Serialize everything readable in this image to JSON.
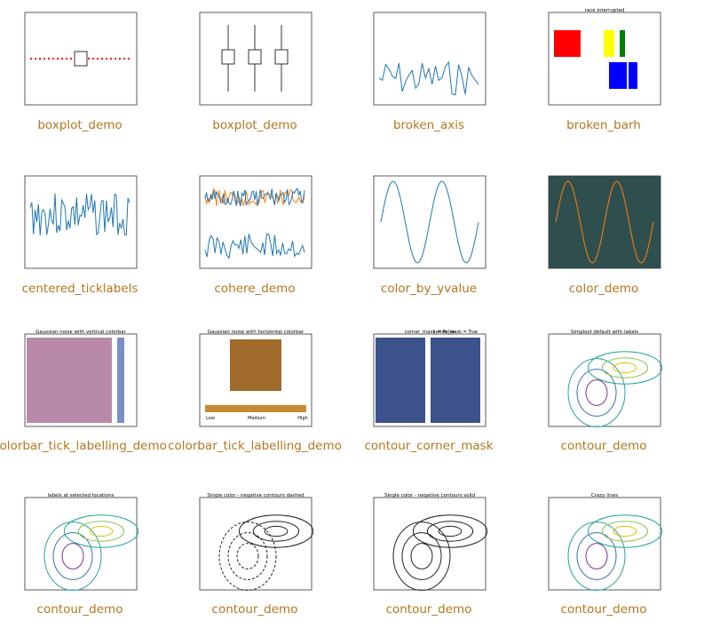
{
  "gallery": [
    {
      "caption": "boxplot_demo"
    },
    {
      "caption": "boxplot_demo"
    },
    {
      "caption": "broken_axis"
    },
    {
      "caption": "broken_barh",
      "title": "race interrupted"
    },
    {
      "caption": "centered_ticklabels"
    },
    {
      "caption": "cohere_demo"
    },
    {
      "caption": "color_by_yvalue"
    },
    {
      "caption": "color_demo"
    },
    {
      "caption": "colorbar_tick_labelling_demo",
      "title": "Gaussian noise with vertical colorbar"
    },
    {
      "caption": "colorbar_tick_labelling_demo",
      "title": "Gaussian noise with horizontal colorbar",
      "labels": [
        "Low",
        "Medium",
        "High"
      ]
    },
    {
      "caption": "contour_corner_mask",
      "title": "corner_mask = False",
      "title2": "corner_mask = True"
    },
    {
      "caption": "contour_demo",
      "title": "Simplest default with labels"
    },
    {
      "caption": "contour_demo",
      "title": "labels at selected locations"
    },
    {
      "caption": "contour_demo",
      "title": "Single color - negative contours dashed"
    },
    {
      "caption": "contour_demo",
      "title": "Single color - negative contours solid"
    },
    {
      "caption": "contour_demo",
      "title": "Crazy lines"
    }
  ]
}
